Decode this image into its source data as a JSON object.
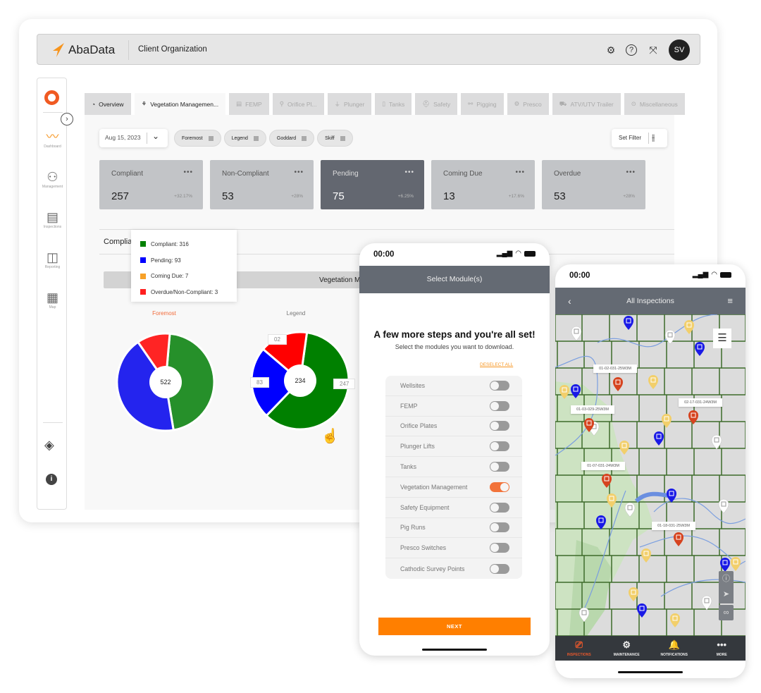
{
  "app": {
    "brand": "AbaData",
    "organization": "Client Organization",
    "avatar_initials": "SV",
    "accent": "#f7941d"
  },
  "header_icons": [
    "settings-icon",
    "help-icon",
    "collapse-icon"
  ],
  "sidebar": {
    "items": [
      {
        "label": "Dashboard",
        "icon": "dashboard-icon",
        "active": true
      },
      {
        "label": "Management",
        "icon": "management-icon"
      },
      {
        "label": "Inspections",
        "icon": "inspections-icon"
      },
      {
        "label": "Reporting",
        "icon": "reporting-icon"
      },
      {
        "label": "Map",
        "icon": "map-icon"
      }
    ]
  },
  "tabs": [
    {
      "label": "Overview",
      "icon": "◔"
    },
    {
      "label": "Vegetation Managemen...",
      "icon": "⚘",
      "active": true
    },
    {
      "label": "FEMP",
      "icon": "▤"
    },
    {
      "label": "Orifice Pl...",
      "icon": "⚲"
    },
    {
      "label": "Plunger",
      "icon": "⏚"
    },
    {
      "label": "Tanks",
      "icon": "▯"
    },
    {
      "label": "Safety",
      "icon": "⛑"
    },
    {
      "label": "Pigging",
      "icon": "⚯"
    },
    {
      "label": "Presco",
      "icon": "⚙"
    },
    {
      "label": "ATV/UTV Trailer",
      "icon": "⛟"
    },
    {
      "label": "Miscellaneous",
      "icon": "⊙"
    }
  ],
  "filters": {
    "date": "Aug 15, 2023",
    "chips": [
      "Foremost",
      "Legend",
      "Goddard",
      "Skiff"
    ],
    "set_filter": "Set Filter"
  },
  "cards": [
    {
      "label": "Compliant",
      "value": "257",
      "change": "+32.17%"
    },
    {
      "label": "Non-Compliant",
      "value": "53",
      "change": "+28%"
    },
    {
      "label": "Pending",
      "value": "75",
      "change": "+6.25%",
      "selected": true
    },
    {
      "label": "Coming Due",
      "value": "13",
      "change": "+17.6%"
    },
    {
      "label": "Overdue",
      "value": "53",
      "change": "+28%"
    }
  ],
  "section": {
    "title": "Complia",
    "bar_title": "Vegetation M"
  },
  "tooltip": [
    {
      "label": "Compliant: 316",
      "color": "#008000"
    },
    {
      "label": "Pending: 93",
      "color": "#0000ff"
    },
    {
      "label": "Coming Due: 7",
      "color": "#f7a128"
    },
    {
      "label": "Overdue/Non-Compliant: 3",
      "color": "#ff2020"
    }
  ],
  "chart_data": [
    {
      "type": "pie",
      "title": "Foremost",
      "center_label": "522",
      "segments": [
        {
          "color": "#26902a",
          "share": 0.46
        },
        {
          "color": "#2424ee",
          "share": 0.43
        },
        {
          "color": "#ff2424",
          "share": 0.11
        }
      ]
    },
    {
      "type": "pie",
      "title": "Legend",
      "center_label": "234",
      "segments": [
        {
          "color": "#008000",
          "share": 0.6,
          "label": "247"
        },
        {
          "color": "#0000ff",
          "share": 0.24,
          "label": "83"
        },
        {
          "color": "#ff0000",
          "share": 0.16,
          "label": "02"
        }
      ]
    }
  ],
  "phone1": {
    "time": "00:00",
    "title": "Select Module(s)",
    "heading": "A few more steps and you're all set!",
    "subheading": "Select the modules you want to download.",
    "deselect": "DESELECT ALL",
    "modules": [
      {
        "label": "Wellsites",
        "on": false
      },
      {
        "label": "FEMP",
        "on": false
      },
      {
        "label": "Orifice Plates",
        "on": false
      },
      {
        "label": "Plunger Lifts",
        "on": false
      },
      {
        "label": "Tanks",
        "on": false
      },
      {
        "label": "Vegetation Management",
        "on": true
      },
      {
        "label": "Safety Equipment",
        "on": false
      },
      {
        "label": "Pig Runs",
        "on": false
      },
      {
        "label": "Presco Switches",
        "on": false
      },
      {
        "label": "Cathodic Survey Points",
        "on": false
      }
    ],
    "next": "NEXT"
  },
  "phone2": {
    "time": "00:00",
    "title": "All Inspections",
    "map_labels": [
      "01-02-031-25W3M",
      "02-17-031-24W3M",
      "01-03-029-25W3M",
      "01-07-031-24W3M",
      "01-18-031-25W3M"
    ],
    "pin_colors": {
      "blue": "#1a1ae6",
      "white": "#ffffff",
      "yellow": "#f2cf6b",
      "red": "#d6431f"
    },
    "nav": [
      {
        "label": "INSPECTIONS",
        "icon": "⎚",
        "active": true
      },
      {
        "label": "MAINTENANCE",
        "icon": "⚙"
      },
      {
        "label": "NOTIFICATIONS",
        "icon": "🔔"
      },
      {
        "label": "MORE",
        "icon": "•••"
      }
    ]
  }
}
